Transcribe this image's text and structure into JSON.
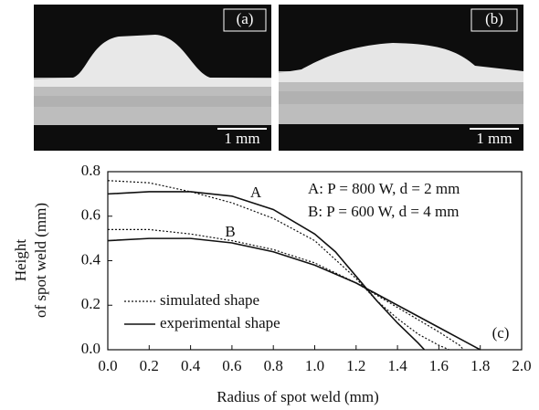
{
  "panels": [
    {
      "label": "(a)",
      "scale_bar": "1 mm"
    },
    {
      "label": "(b)",
      "scale_bar": "1 mm"
    }
  ],
  "chart_data": {
    "type": "line",
    "xlabel": "Radius of spot weld (mm)",
    "ylabel": [
      "Height",
      "of spot weld (mm)"
    ],
    "panel_label": "(c)",
    "annotations": [
      "A: P = 800 W,  d = 2 mm",
      "B: P = 600 W,  d = 4 mm"
    ],
    "xlim": [
      0,
      2.0
    ],
    "ylim": [
      0,
      0.8
    ],
    "xticks": [
      {
        "value": 0,
        "label": "0.0"
      },
      {
        "value": 0.2,
        "label": "0.2"
      },
      {
        "value": 0.4,
        "label": "0.4"
      },
      {
        "value": 0.6,
        "label": "0.6"
      },
      {
        "value": 0.8,
        "label": "0.8"
      },
      {
        "value": 1.0,
        "label": "1.0"
      },
      {
        "value": 1.2,
        "label": "1.2"
      },
      {
        "value": 1.4,
        "label": "1.4"
      },
      {
        "value": 1.6,
        "label": "1.6"
      },
      {
        "value": 1.8,
        "label": "1.8"
      },
      {
        "value": 2.0,
        "label": "2.0"
      }
    ],
    "yticks": [
      {
        "value": 0,
        "label": "0.0"
      },
      {
        "value": 0.2,
        "label": "0.2"
      },
      {
        "value": 0.4,
        "label": "0.4"
      },
      {
        "value": 0.6,
        "label": "0.6"
      },
      {
        "value": 0.8,
        "label": "0.8"
      }
    ],
    "legend": [
      {
        "name": "simulated shape",
        "dash": "dotted"
      },
      {
        "name": "experimental shape",
        "dash": "solid"
      }
    ],
    "color": "#111111",
    "curves": [
      {
        "label": "A",
        "simulated": {
          "x": [
            0,
            0.2,
            0.4,
            0.6,
            0.8,
            1.0,
            1.2,
            1.3,
            1.4,
            1.5,
            1.6,
            1.65
          ],
          "values": [
            0.76,
            0.75,
            0.71,
            0.66,
            0.59,
            0.49,
            0.32,
            0.22,
            0.14,
            0.07,
            0.02,
            0
          ]
        },
        "experimental": {
          "x": [
            0,
            0.2,
            0.4,
            0.6,
            0.8,
            1.0,
            1.1,
            1.2,
            1.3,
            1.4,
            1.5,
            1.53
          ],
          "values": [
            0.7,
            0.71,
            0.71,
            0.69,
            0.63,
            0.52,
            0.44,
            0.33,
            0.22,
            0.12,
            0.03,
            0
          ]
        }
      },
      {
        "label": "B",
        "simulated": {
          "x": [
            0,
            0.2,
            0.4,
            0.6,
            0.8,
            1.0,
            1.2,
            1.4,
            1.6,
            1.7,
            1.72
          ],
          "values": [
            0.54,
            0.54,
            0.52,
            0.49,
            0.45,
            0.39,
            0.3,
            0.19,
            0.08,
            0.02,
            0
          ]
        },
        "experimental": {
          "x": [
            0,
            0.2,
            0.4,
            0.6,
            0.8,
            1.0,
            1.2,
            1.4,
            1.6,
            1.7,
            1.8
          ],
          "values": [
            0.49,
            0.5,
            0.5,
            0.48,
            0.44,
            0.38,
            0.3,
            0.2,
            0.1,
            0.05,
            0
          ]
        }
      }
    ]
  }
}
